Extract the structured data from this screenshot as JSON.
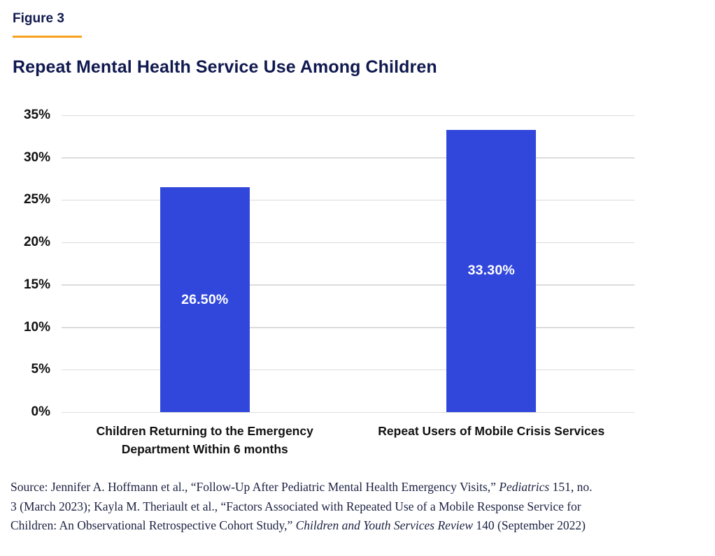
{
  "header": {
    "figure_label": "Figure 3"
  },
  "chart_data": {
    "type": "bar",
    "title": "Repeat Mental Health Service Use Among Children",
    "categories": [
      "Children Returning to the Emergency Department Within 6 months",
      "Repeat Users of Mobile Crisis Services"
    ],
    "values": [
      26.5,
      33.3
    ],
    "value_labels": [
      "26.50%",
      "33.30%"
    ],
    "xlabel": "",
    "ylabel": "",
    "ylim": [
      0,
      35
    ],
    "ytick_step": 5,
    "ytick_labels": [
      "0%",
      "5%",
      "10%",
      "15%",
      "20%",
      "25%",
      "30%",
      "35%"
    ],
    "grid": true,
    "legend": false,
    "bar_color": "#3147DB",
    "bar_label_color": "#FFFFFF"
  },
  "colors": {
    "brand_navy": "#10194F",
    "accent_orange": "#F6A21E",
    "gridline_gray": "#DCDCDC",
    "axis_text": "#111111",
    "source_text": "#1B2142"
  },
  "source": {
    "lines": [
      [
        {
          "t": "Source: Jennifer A. Hoffmann et al., “Follow-Up After Pediatric Mental Health Emergency Visits,” ",
          "i": false
        },
        {
          "t": "Pediatrics",
          "i": true
        },
        {
          "t": " 151, no.",
          "i": false
        }
      ],
      [
        {
          "t": "3 (March 2023); Kayla M. Theriault et al., “Factors Associated with Repeated Use of a Mobile Response Service for",
          "i": false
        }
      ],
      [
        {
          "t": "Children: An Observational Retrospective Cohort Study,” ",
          "i": false
        },
        {
          "t": "Children and Youth Services Review",
          "i": true
        },
        {
          "t": " 140 (September 2022)",
          "i": false
        }
      ]
    ]
  }
}
